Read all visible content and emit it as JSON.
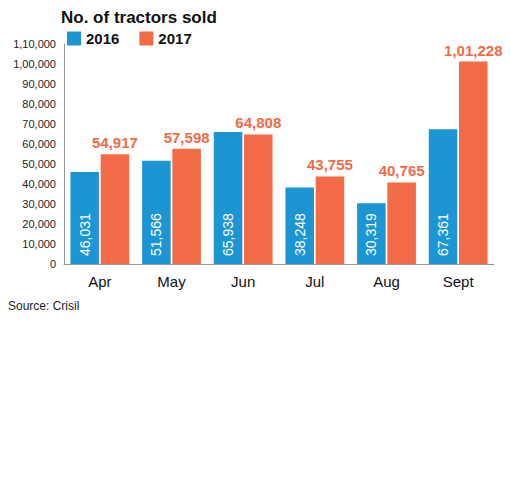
{
  "chart_data": {
    "type": "bar",
    "title": "No. of tractors sold",
    "source": "Source: Crisil",
    "categories": [
      "Apr",
      "May",
      "Jun",
      "Jul",
      "Aug",
      "Sept"
    ],
    "series": [
      {
        "name": "2016",
        "color": "#1b96d2",
        "values": [
          46031,
          51566,
          65938,
          38248,
          30319,
          67361
        ],
        "value_labels": [
          "46,031",
          "51,566",
          "65,938",
          "38,248",
          "30,319",
          "67,361"
        ]
      },
      {
        "name": "2017",
        "color": "#f26a46",
        "values": [
          54917,
          57598,
          64808,
          43755,
          40765,
          101228
        ],
        "value_labels": [
          "54,917",
          "57,598",
          "64,808",
          "43,755",
          "40,765",
          "1,01,228"
        ]
      }
    ],
    "ylim": [
      0,
      110000
    ],
    "yticks": [
      0,
      {
        "value": 10000,
        "label": "10,000"
      },
      {
        "value": 20000,
        "label": "20,000"
      },
      {
        "value": 30000,
        "label": "30,000"
      },
      {
        "value": 40000,
        "label": "40,000"
      },
      {
        "value": 50000,
        "label": "50,000"
      },
      {
        "value": 60000,
        "label": "60,000"
      },
      {
        "value": 70000,
        "label": "70,000"
      },
      {
        "value": 80000,
        "label": "80,000"
      },
      {
        "value": 90000,
        "label": "90,000"
      },
      {
        "value": 100000,
        "label": "1,00,000"
      },
      {
        "value": 110000,
        "label": "1,10,000"
      }
    ],
    "grid": false,
    "legend": "top-left",
    "data_labels": true
  }
}
